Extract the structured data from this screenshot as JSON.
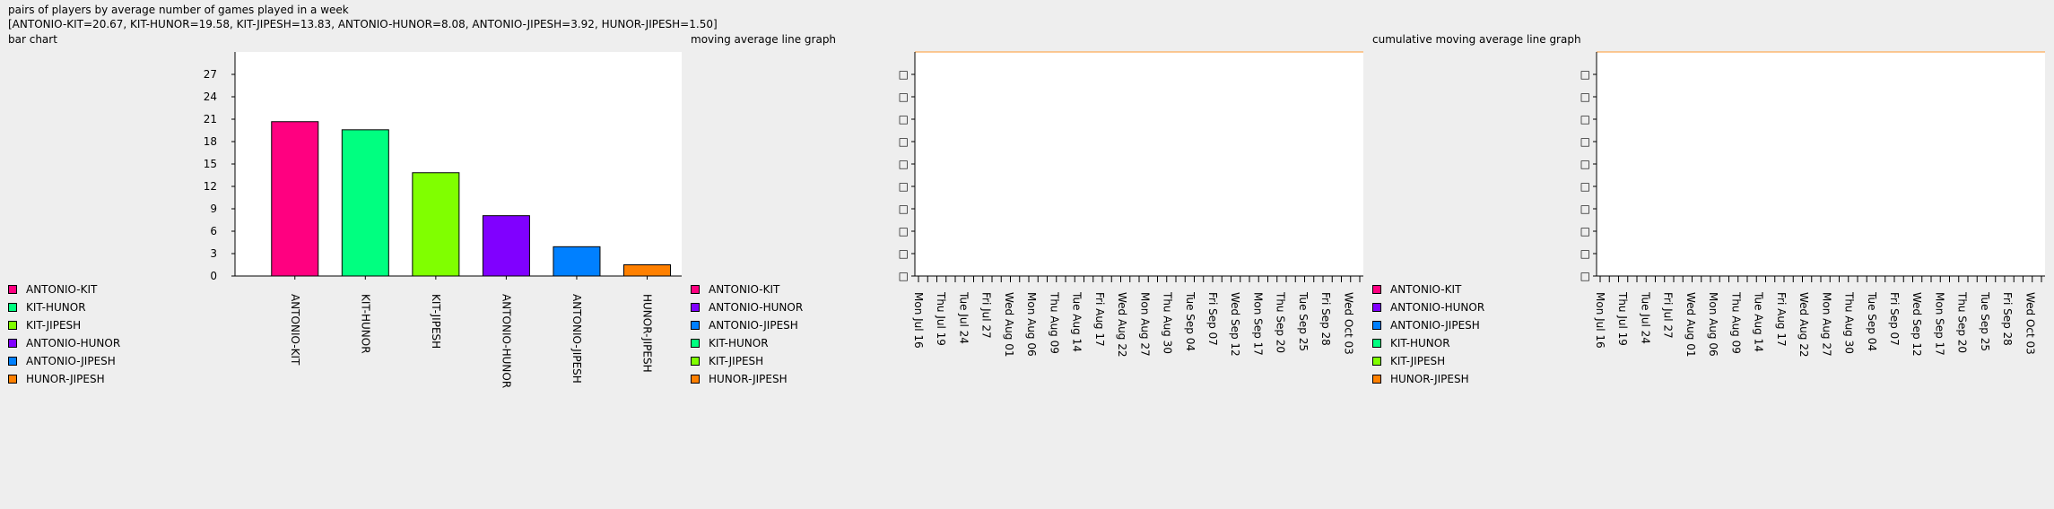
{
  "header": {
    "title": "pairs of players by average number of games played in a week",
    "summary": "[ANTONIO-KIT=20.67, KIT-HUNOR=19.58, KIT-JIPESH=13.83, ANTONIO-HUNOR=8.08, ANTONIO-JIPESH=3.92, HUNOR-JIPESH=1.50]"
  },
  "chart_data": [
    {
      "type": "bar",
      "title": "bar chart",
      "categories": [
        "ANTONIO-KIT",
        "KIT-HUNOR",
        "KIT-JIPESH",
        "ANTONIO-HUNOR",
        "ANTONIO-JIPESH",
        "HUNOR-JIPESH"
      ],
      "values": [
        20.67,
        19.58,
        13.83,
        8.08,
        3.92,
        1.5
      ],
      "colors": [
        "#ff0080",
        "#00ff80",
        "#80ff00",
        "#8000ff",
        "#0080ff",
        "#ff8000"
      ],
      "ylim": [
        0,
        30
      ],
      "yticks": [
        "0",
        "3",
        "6",
        "9",
        "12",
        "15",
        "18",
        "21",
        "24",
        "27"
      ],
      "legend": [
        {
          "label": "ANTONIO-KIT",
          "color": "#ff0080"
        },
        {
          "label": "KIT-HUNOR",
          "color": "#00ff80"
        },
        {
          "label": "KIT-JIPESH",
          "color": "#80ff00"
        },
        {
          "label": "ANTONIO-HUNOR",
          "color": "#8000ff"
        },
        {
          "label": "ANTONIO-JIPESH",
          "color": "#0080ff"
        },
        {
          "label": "HUNOR-JIPESH",
          "color": "#ff8000"
        }
      ],
      "legend_position": "bottom-left"
    },
    {
      "type": "line",
      "title": "moving average line graph",
      "x": [
        "Mon Jul 16",
        "Thu Jul 19",
        "Tue Jul 24",
        "Fri Jul 27",
        "Wed Aug 01",
        "Mon Aug 06",
        "Thu Aug 09",
        "Tue Aug 14",
        "Fri Aug 17",
        "Wed Aug 22",
        "Mon Aug 27",
        "Thu Aug 30",
        "Tue Sep 04",
        "Fri Sep 07",
        "Wed Sep 12",
        "Mon Sep 17",
        "Thu Sep 20",
        "Tue Sep 25",
        "Fri Sep 28",
        "Wed Oct 03"
      ],
      "minor_ticks": 48,
      "ytick_count": 10,
      "ytick_glyph": "□",
      "top_line_color": "#ff9933",
      "legend": [
        {
          "label": "ANTONIO-KIT",
          "color": "#ff0080"
        },
        {
          "label": "ANTONIO-HUNOR",
          "color": "#8000ff"
        },
        {
          "label": "ANTONIO-JIPESH",
          "color": "#0080ff"
        },
        {
          "label": "KIT-HUNOR",
          "color": "#00ff80"
        },
        {
          "label": "KIT-JIPESH",
          "color": "#80ff00"
        },
        {
          "label": "HUNOR-JIPESH",
          "color": "#ff8000"
        }
      ],
      "legend_position": "bottom-left"
    },
    {
      "type": "line",
      "title": "cumulative moving average line graph",
      "x": [
        "Mon Jul 16",
        "Thu Jul 19",
        "Tue Jul 24",
        "Fri Jul 27",
        "Wed Aug 01",
        "Mon Aug 06",
        "Thu Aug 09",
        "Tue Aug 14",
        "Fri Aug 17",
        "Wed Aug 22",
        "Mon Aug 27",
        "Thu Aug 30",
        "Tue Sep 04",
        "Fri Sep 07",
        "Wed Sep 12",
        "Mon Sep 17",
        "Thu Sep 20",
        "Tue Sep 25",
        "Fri Sep 28",
        "Wed Oct 03"
      ],
      "minor_ticks": 48,
      "ytick_count": 10,
      "ytick_glyph": "□",
      "top_line_color": "#ff9933",
      "legend": [
        {
          "label": "ANTONIO-KIT",
          "color": "#ff0080"
        },
        {
          "label": "ANTONIO-HUNOR",
          "color": "#8000ff"
        },
        {
          "label": "ANTONIO-JIPESH",
          "color": "#0080ff"
        },
        {
          "label": "KIT-HUNOR",
          "color": "#00ff80"
        },
        {
          "label": "KIT-JIPESH",
          "color": "#80ff00"
        },
        {
          "label": "HUNOR-JIPESH",
          "color": "#ff8000"
        }
      ],
      "legend_position": "bottom-left"
    }
  ]
}
